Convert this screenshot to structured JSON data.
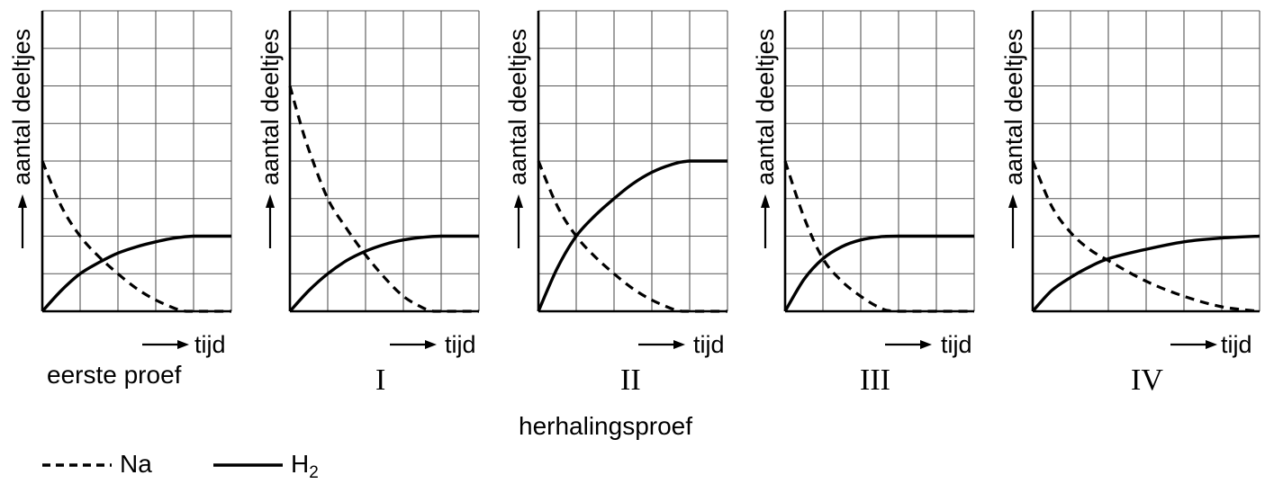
{
  "figure": {
    "y_axis_label": "aantal deeltjes",
    "x_axis_label": "tijd",
    "group_label": "herhalingsproef",
    "legend": [
      {
        "label": "Na",
        "style": "dashed"
      },
      {
        "label": "H",
        "subscript": "2",
        "style": "solid"
      }
    ]
  },
  "panels": [
    {
      "caption": "eerste proef",
      "caption_style": "sans"
    },
    {
      "caption": "I",
      "caption_style": "serif"
    },
    {
      "caption": "II",
      "caption_style": "serif"
    },
    {
      "caption": "III",
      "caption_style": "serif"
    },
    {
      "caption": "IV",
      "caption_style": "serif"
    }
  ],
  "chart_data": [
    {
      "type": "line",
      "title": "eerste proef",
      "xlabel": "tijd",
      "ylabel": "aantal deeltjes",
      "grid": true,
      "xlim": [
        0,
        5
      ],
      "ylim": [
        0,
        8
      ],
      "series": [
        {
          "name": "Na",
          "style": "dashed",
          "x": [
            0,
            0.5,
            1,
            1.5,
            2,
            2.5,
            3,
            3.5,
            3.8,
            4,
            5
          ],
          "values": [
            4,
            2.8,
            2,
            1.45,
            1,
            0.6,
            0.3,
            0.08,
            0,
            0,
            0
          ]
        },
        {
          "name": "H2",
          "style": "solid",
          "x": [
            0,
            0.5,
            1,
            1.5,
            2,
            2.5,
            3,
            3.5,
            4,
            5
          ],
          "values": [
            0,
            0.55,
            1,
            1.3,
            1.55,
            1.72,
            1.85,
            1.95,
            2,
            2
          ]
        }
      ]
    },
    {
      "type": "line",
      "title": "I",
      "xlabel": "tijd",
      "ylabel": "aantal deeltjes",
      "grid": true,
      "xlim": [
        0,
        5
      ],
      "ylim": [
        0,
        8
      ],
      "series": [
        {
          "name": "Na",
          "style": "dashed",
          "x": [
            0,
            0.25,
            0.5,
            1,
            1.5,
            2,
            2.5,
            3,
            3.5,
            3.8,
            4,
            5
          ],
          "values": [
            6,
            5.1,
            4.3,
            3,
            2.2,
            1.5,
            0.9,
            0.4,
            0.1,
            0,
            0,
            0
          ]
        },
        {
          "name": "H2",
          "style": "solid",
          "x": [
            0,
            0.5,
            1,
            1.5,
            2,
            2.5,
            3,
            3.5,
            4,
            5
          ],
          "values": [
            0,
            0.55,
            1,
            1.35,
            1.6,
            1.78,
            1.9,
            1.97,
            2,
            2
          ]
        }
      ]
    },
    {
      "type": "line",
      "title": "II",
      "xlabel": "tijd",
      "ylabel": "aantal deeltjes",
      "grid": true,
      "xlim": [
        0,
        5
      ],
      "ylim": [
        0,
        8
      ],
      "series": [
        {
          "name": "Na",
          "style": "dashed",
          "x": [
            0,
            0.5,
            1,
            1.5,
            2,
            2.5,
            3,
            3.5,
            3.8,
            4,
            5
          ],
          "values": [
            4,
            2.8,
            2,
            1.45,
            1,
            0.6,
            0.3,
            0.08,
            0,
            0,
            0
          ]
        },
        {
          "name": "H2",
          "style": "solid",
          "x": [
            0,
            0.5,
            1,
            1.5,
            2,
            2.5,
            3,
            3.5,
            4,
            5
          ],
          "values": [
            0,
            1.15,
            2,
            2.55,
            3,
            3.4,
            3.7,
            3.9,
            4,
            4
          ]
        }
      ]
    },
    {
      "type": "line",
      "title": "III",
      "xlabel": "tijd",
      "ylabel": "aantal deeltjes",
      "grid": true,
      "xlim": [
        0,
        5
      ],
      "ylim": [
        0,
        8
      ],
      "series": [
        {
          "name": "Na",
          "style": "dashed",
          "x": [
            0,
            0.5,
            1,
            1.5,
            2,
            2.5,
            3,
            5
          ],
          "values": [
            4,
            2.5,
            1.4,
            0.8,
            0.4,
            0.1,
            0,
            0
          ]
        },
        {
          "name": "H2",
          "style": "solid",
          "x": [
            0,
            0.5,
            1,
            1.5,
            2,
            2.5,
            3,
            5
          ],
          "values": [
            0,
            0.85,
            1.4,
            1.72,
            1.9,
            1.98,
            2,
            2
          ]
        }
      ]
    },
    {
      "type": "line",
      "title": "IV",
      "xlabel": "tijd",
      "ylabel": "aantal deeltjes",
      "grid": true,
      "xlim": [
        0,
        6
      ],
      "ylim": [
        0,
        8
      ],
      "series": [
        {
          "name": "Na",
          "style": "dashed",
          "x": [
            0,
            0.5,
            1,
            1.5,
            2,
            3,
            4,
            5,
            6
          ],
          "values": [
            4,
            2.8,
            2.1,
            1.65,
            1.35,
            0.8,
            0.4,
            0.12,
            0
          ]
        },
        {
          "name": "H2",
          "style": "solid",
          "x": [
            0,
            0.5,
            1,
            1.5,
            2,
            3,
            4,
            5,
            6
          ],
          "values": [
            0,
            0.55,
            0.9,
            1.18,
            1.4,
            1.65,
            1.85,
            1.95,
            2
          ]
        }
      ]
    }
  ]
}
